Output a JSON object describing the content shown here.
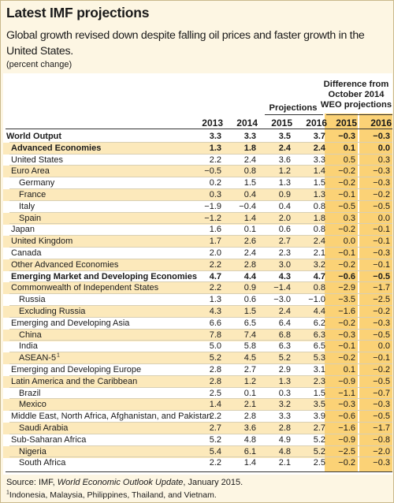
{
  "title": "Latest IMF projections",
  "subtitle": "Global growth revised down despite falling oil prices and faster growth in the United States.",
  "unit_note": "(percent change)",
  "header": {
    "diff_line1": "Difference from",
    "diff_line2": "October 2014",
    "diff_line3": "WEO projections",
    "projections": "Projections",
    "years": [
      "2013",
      "2014",
      "2015",
      "2016",
      "2015",
      "2016"
    ]
  },
  "rows": [
    {
      "label": "World Output",
      "level": 0,
      "bold": true,
      "values": [
        "3.3",
        "3.3",
        "3.5",
        "3.7",
        "−0.3",
        "−0.3"
      ]
    },
    {
      "label": "Advanced Economies",
      "level": 1,
      "bold": true,
      "shaded": true,
      "values": [
        "1.3",
        "1.8",
        "2.4",
        "2.4",
        "0.1",
        "0.0"
      ]
    },
    {
      "label": "United States",
      "level": 1,
      "values": [
        "2.2",
        "2.4",
        "3.6",
        "3.3",
        "0.5",
        "0.3"
      ]
    },
    {
      "label": "Euro Area",
      "level": 1,
      "shaded": true,
      "values": [
        "−0.5",
        "0.8",
        "1.2",
        "1.4",
        "−0.2",
        "−0.3"
      ]
    },
    {
      "label": "Germany",
      "level": 2,
      "values": [
        "0.2",
        "1.5",
        "1.3",
        "1.5",
        "−0.2",
        "−0.3"
      ]
    },
    {
      "label": "France",
      "level": 2,
      "shaded": true,
      "values": [
        "0.3",
        "0.4",
        "0.9",
        "1.3",
        "−0.1",
        "−0.2"
      ]
    },
    {
      "label": "Italy",
      "level": 2,
      "values": [
        "−1.9",
        "−0.4",
        "0.4",
        "0.8",
        "−0.5",
        "−0.5"
      ]
    },
    {
      "label": "Spain",
      "level": 2,
      "shaded": true,
      "values": [
        "−1.2",
        "1.4",
        "2.0",
        "1.8",
        "0.3",
        "0.0"
      ]
    },
    {
      "label": "Japan",
      "level": 1,
      "values": [
        "1.6",
        "0.1",
        "0.6",
        "0.8",
        "−0.2",
        "−0.1"
      ]
    },
    {
      "label": "United Kingdom",
      "level": 1,
      "shaded": true,
      "values": [
        "1.7",
        "2.6",
        "2.7",
        "2.4",
        "0.0",
        "−0.1"
      ]
    },
    {
      "label": "Canada",
      "level": 1,
      "values": [
        "2.0",
        "2.4",
        "2.3",
        "2.1",
        "−0.1",
        "−0.3"
      ]
    },
    {
      "label": "Other Advanced Economies",
      "level": 1,
      "shaded": true,
      "values": [
        "2.2",
        "2.8",
        "3.0",
        "3.2",
        "−0.2",
        "−0.1"
      ]
    },
    {
      "label": "Emerging Market and Developing Economies",
      "level": 1,
      "bold": true,
      "values": [
        "4.7",
        "4.4",
        "4.3",
        "4.7",
        "−0.6",
        "−0.5"
      ]
    },
    {
      "label": "Commonwealth of Independent States",
      "level": 1,
      "shaded": true,
      "values": [
        "2.2",
        "0.9",
        "−1.4",
        "0.8",
        "−2.9",
        "−1.7"
      ]
    },
    {
      "label": "Russia",
      "level": 2,
      "values": [
        "1.3",
        "0.6",
        "−3.0",
        "−1.0",
        "−3.5",
        "−2.5"
      ]
    },
    {
      "label": "Excluding Russia",
      "level": 2,
      "shaded": true,
      "values": [
        "4.3",
        "1.5",
        "2.4",
        "4.4",
        "−1.6",
        "−0.2"
      ]
    },
    {
      "label": "Emerging and Developing Asia",
      "level": 1,
      "values": [
        "6.6",
        "6.5",
        "6.4",
        "6.2",
        "−0.2",
        "−0.3"
      ]
    },
    {
      "label": "China",
      "level": 2,
      "shaded": true,
      "values": [
        "7.8",
        "7.4",
        "6.8",
        "6.3",
        "−0.3",
        "−0.5"
      ]
    },
    {
      "label": "India",
      "level": 2,
      "values": [
        "5.0",
        "5.8",
        "6.3",
        "6.5",
        "−0.1",
        "0.0"
      ]
    },
    {
      "label": "ASEAN-5",
      "sup": "1",
      "level": 2,
      "shaded": true,
      "values": [
        "5.2",
        "4.5",
        "5.2",
        "5.3",
        "−0.2",
        "−0.1"
      ]
    },
    {
      "label": "Emerging and Developing Europe",
      "level": 1,
      "values": [
        "2.8",
        "2.7",
        "2.9",
        "3.1",
        "0.1",
        "−0.2"
      ]
    },
    {
      "label": "Latin America and the Caribbean",
      "level": 1,
      "shaded": true,
      "values": [
        "2.8",
        "1.2",
        "1.3",
        "2.3",
        "−0.9",
        "−0.5"
      ]
    },
    {
      "label": "Brazil",
      "level": 2,
      "values": [
        "2.5",
        "0.1",
        "0.3",
        "1.5",
        "−1.1",
        "−0.7"
      ]
    },
    {
      "label": "Mexico",
      "level": 2,
      "shaded": true,
      "values": [
        "1.4",
        "2.1",
        "3.2",
        "3.5",
        "−0.3",
        "−0.3"
      ]
    },
    {
      "label": "Middle East, North Africa, Afghanistan, and Pakistan",
      "level": 1,
      "values": [
        "2.2",
        "2.8",
        "3.3",
        "3.9",
        "−0.6",
        "−0.5"
      ]
    },
    {
      "label": "Saudi Arabia",
      "level": 2,
      "shaded": true,
      "values": [
        "2.7",
        "3.6",
        "2.8",
        "2.7",
        "−1.6",
        "−1.7"
      ]
    },
    {
      "label": "Sub-Saharan Africa",
      "level": 1,
      "values": [
        "5.2",
        "4.8",
        "4.9",
        "5.2",
        "−0.9",
        "−0.8"
      ]
    },
    {
      "label": "Nigeria",
      "level": 2,
      "shaded": true,
      "values": [
        "5.4",
        "6.1",
        "4.8",
        "5.2",
        "−2.5",
        "−2.0"
      ]
    },
    {
      "label": "South Africa",
      "level": 2,
      "values": [
        "2.2",
        "1.4",
        "2.1",
        "2.5",
        "−0.2",
        "−0.3"
      ]
    }
  ],
  "source_prefix": "Source: IMF, ",
  "source_title": "World Economic Outlook Update",
  "source_suffix": ", January 2015.",
  "footnote_mark": "1",
  "footnote_text": "Indonesia, Malaysia, Philippines, Thailand, and Vietnam.",
  "colors": {
    "highlight_column": "#fbd276",
    "shaded_row": "#fce9bb",
    "background": "#fdf6e3"
  }
}
